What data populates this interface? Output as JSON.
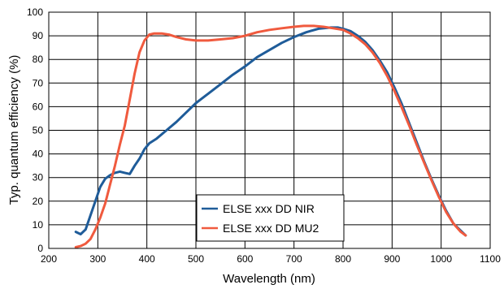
{
  "chart_data": {
    "type": "line",
    "title": "",
    "xlabel": "Wavelength (nm)",
    "ylabel": "Typ. quantum efficiency (%)",
    "xlim": [
      200,
      1100
    ],
    "ylim": [
      0,
      100
    ],
    "x_ticks": [
      200,
      300,
      400,
      500,
      600,
      700,
      800,
      900,
      1000,
      1100
    ],
    "y_ticks": [
      0,
      10,
      20,
      30,
      40,
      50,
      60,
      70,
      80,
      90,
      100
    ],
    "grid": true,
    "legend_position": "bottom-center",
    "series": [
      {
        "name": "ELSE xxx DD NIR",
        "color": "#1f5c99",
        "x": [
          255,
          265,
          275,
          285,
          295,
          305,
          315,
          325,
          335,
          345,
          355,
          365,
          375,
          385,
          395,
          405,
          420,
          440,
          460,
          480,
          500,
          525,
          550,
          575,
          600,
          625,
          650,
          675,
          700,
          725,
          750,
          775,
          790,
          800,
          815,
          830,
          845,
          860,
          875,
          890,
          905,
          920,
          935,
          950,
          965,
          980,
          995,
          1010,
          1025,
          1040,
          1050
        ],
        "y": [
          7,
          6,
          8,
          14,
          20,
          26,
          29.5,
          31,
          32,
          32.5,
          32,
          31.5,
          35,
          38,
          42,
          44.5,
          46.5,
          50,
          53.5,
          57.5,
          61.5,
          65.5,
          69.5,
          73.5,
          77,
          81,
          84,
          87,
          89.5,
          91.5,
          93,
          93.5,
          93.5,
          93,
          92,
          90,
          87.5,
          84,
          79.5,
          74.5,
          68,
          61,
          53,
          45,
          37,
          29.5,
          22.5,
          16,
          10.5,
          7.5,
          5.5
        ]
      },
      {
        "name": "ELSE xxx DD MU2",
        "color": "#f05a3e",
        "x": [
          255,
          265,
          275,
          285,
          295,
          305,
          315,
          325,
          335,
          345,
          355,
          365,
          375,
          385,
          395,
          405,
          415,
          430,
          445,
          460,
          480,
          500,
          525,
          550,
          575,
          600,
          625,
          650,
          675,
          700,
          720,
          740,
          760,
          780,
          800,
          815,
          830,
          845,
          860,
          875,
          890,
          905,
          920,
          935,
          950,
          965,
          980,
          995,
          1010,
          1025,
          1040,
          1050
        ],
        "y": [
          0.5,
          1,
          2,
          4,
          8,
          13,
          19,
          27,
          35,
          44,
          52,
          63,
          74,
          83,
          88,
          90.5,
          91,
          91,
          90.5,
          89.5,
          88.5,
          88,
          88,
          88.5,
          89,
          90,
          91.5,
          92.5,
          93.2,
          93.8,
          94.2,
          94.2,
          93.8,
          93.2,
          92.5,
          91,
          89,
          86.5,
          83,
          78.5,
          73,
          66.5,
          59.5,
          52,
          44,
          36.5,
          29,
          22,
          15.5,
          10.5,
          7,
          5.5
        ]
      }
    ]
  }
}
